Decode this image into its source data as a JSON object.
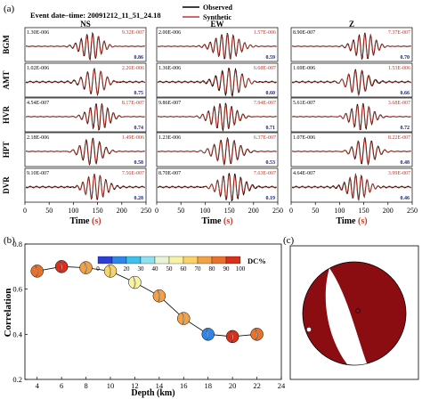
{
  "panel_a": {
    "panel_label": "(a)",
    "event_label": "Event date–time:  20091212_11_51_24.18",
    "legend": [
      {
        "name": "Observed",
        "color": "#000000"
      },
      {
        "name": "Synthetic",
        "color": "#c0392b"
      }
    ],
    "columns": [
      "NS",
      "EW",
      "Z"
    ],
    "stations": [
      "BGM",
      "AMT",
      "HVR",
      "HPT",
      "DVR"
    ],
    "xlabel": "Time",
    "xlabel_unit": "(s)",
    "xticks": [
      "0",
      "50",
      "100",
      "150",
      "200",
      "250"
    ],
    "traces": [
      [
        {
          "obs": "1.30E-006",
          "syn": "9.32E-007",
          "cc": "0.86"
        },
        {
          "obs": "2.00E-006",
          "syn": "1.57E-006",
          "cc": "0.59"
        },
        {
          "obs": "8.90E-007",
          "syn": "7.37E-007",
          "cc": "0.70"
        }
      ],
      [
        {
          "obs": "1.02E-006",
          "syn": "2.26E-006",
          "cc": "0.75"
        },
        {
          "obs": "1.36E-006",
          "syn": "6.68E-007",
          "cc": "0.60"
        },
        {
          "obs": "1.69E-006",
          "syn": "1.53E-006",
          "cc": "0.66"
        }
      ],
      [
        {
          "obs": "4.54E-007",
          "syn": "8.17E-007",
          "cc": "0.74"
        },
        {
          "obs": "9.86E-007",
          "syn": "7.94E-007",
          "cc": "0.71"
        },
        {
          "obs": "5.61E-007",
          "syn": "3.68E-007",
          "cc": "0.72"
        }
      ],
      [
        {
          "obs": "2.18E-006",
          "syn": "1.49E-006",
          "cc": "0.58"
        },
        {
          "obs": "1.23E-006",
          "syn": "6.37E-007",
          "cc": "0.53"
        },
        {
          "obs": "1.07E-006",
          "syn": "8.22E-007",
          "cc": "0.48"
        }
      ],
      [
        {
          "obs": "9.10E-007",
          "syn": "7.56E-007",
          "cc": "0.28"
        },
        {
          "obs": "8.70E-007",
          "syn": "7.63E-007",
          "cc": "0.19"
        },
        {
          "obs": "4.64E-007",
          "syn": "3.99E-007",
          "cc": "0.46"
        }
      ]
    ]
  },
  "panel_b": {
    "panel_label": "(b)",
    "colorbar_ticks": [
      "0",
      "10",
      "20",
      "30",
      "40",
      "50",
      "60",
      "70",
      "80",
      "90",
      "100"
    ],
    "colorbar_label": "DC%",
    "colorbar_colors": [
      "#2b3fd6",
      "#2f86e8",
      "#3cc0ee",
      "#8fe0f0",
      "#e8f4d8",
      "#f7f3a6",
      "#f9d36a",
      "#f3a146",
      "#e8712c",
      "#d9301c"
    ]
  },
  "panel_c": {
    "panel_label": "(c)",
    "beachball_color": "#8b0d12"
  },
  "chart_data": [
    {
      "type": "line",
      "panel": "(b)",
      "xlabel": "Depth (km)",
      "ylabel": "Correlation",
      "xlim": [
        3,
        24
      ],
      "ylim": [
        0.2,
        0.8
      ],
      "xticks": [
        4,
        6,
        8,
        10,
        12,
        14,
        16,
        18,
        20,
        22,
        24
      ],
      "yticks": [
        0.2,
        0.4,
        0.6,
        0.8
      ],
      "grid": false,
      "x": [
        4,
        6,
        8,
        10,
        12,
        14,
        16,
        18,
        20,
        22
      ],
      "y": [
        0.68,
        0.7,
        0.695,
        0.68,
        0.63,
        0.57,
        0.47,
        0.4,
        0.39,
        0.4
      ],
      "dc_percent": [
        85,
        92,
        75,
        68,
        55,
        72,
        78,
        18,
        92,
        82
      ]
    }
  ]
}
